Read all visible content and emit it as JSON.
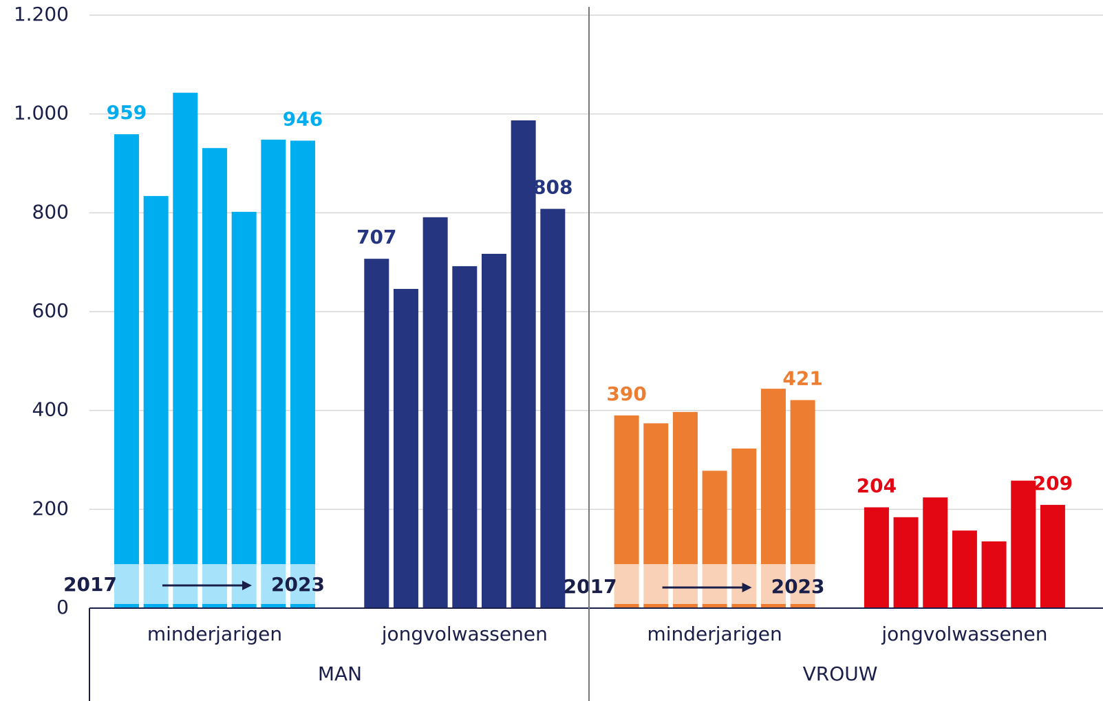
{
  "chart_data": {
    "type": "bar",
    "ylim": [
      0,
      1200
    ],
    "yticks": [
      0,
      200,
      400,
      600,
      800,
      {
        "value": 1000,
        "label": "1.000"
      },
      {
        "value": 1200,
        "label": "1.200"
      }
    ],
    "grid": true,
    "year_labels": [
      "2017",
      "2023"
    ],
    "sections": [
      {
        "name": "MAN",
        "groups": [
          {
            "name": "minderjarigen",
            "color": "#00aeef",
            "values": [
              959,
              834,
              1043,
              931,
              802,
              948,
              946
            ]
          },
          {
            "name": "jongvolwassenen",
            "color": "#263580",
            "values": [
              707,
              646,
              791,
              692,
              717,
              987,
              808
            ]
          }
        ]
      },
      {
        "name": "VROUW",
        "groups": [
          {
            "name": "minderjarigen",
            "color": "#ed7d31",
            "values": [
              390,
              374,
              397,
              278,
              323,
              444,
              421
            ]
          },
          {
            "name": "jongvolwassenen",
            "color": "#e30613",
            "values": [
              204,
              184,
              224,
              157,
              135,
              258,
              209
            ]
          }
        ]
      }
    ]
  }
}
